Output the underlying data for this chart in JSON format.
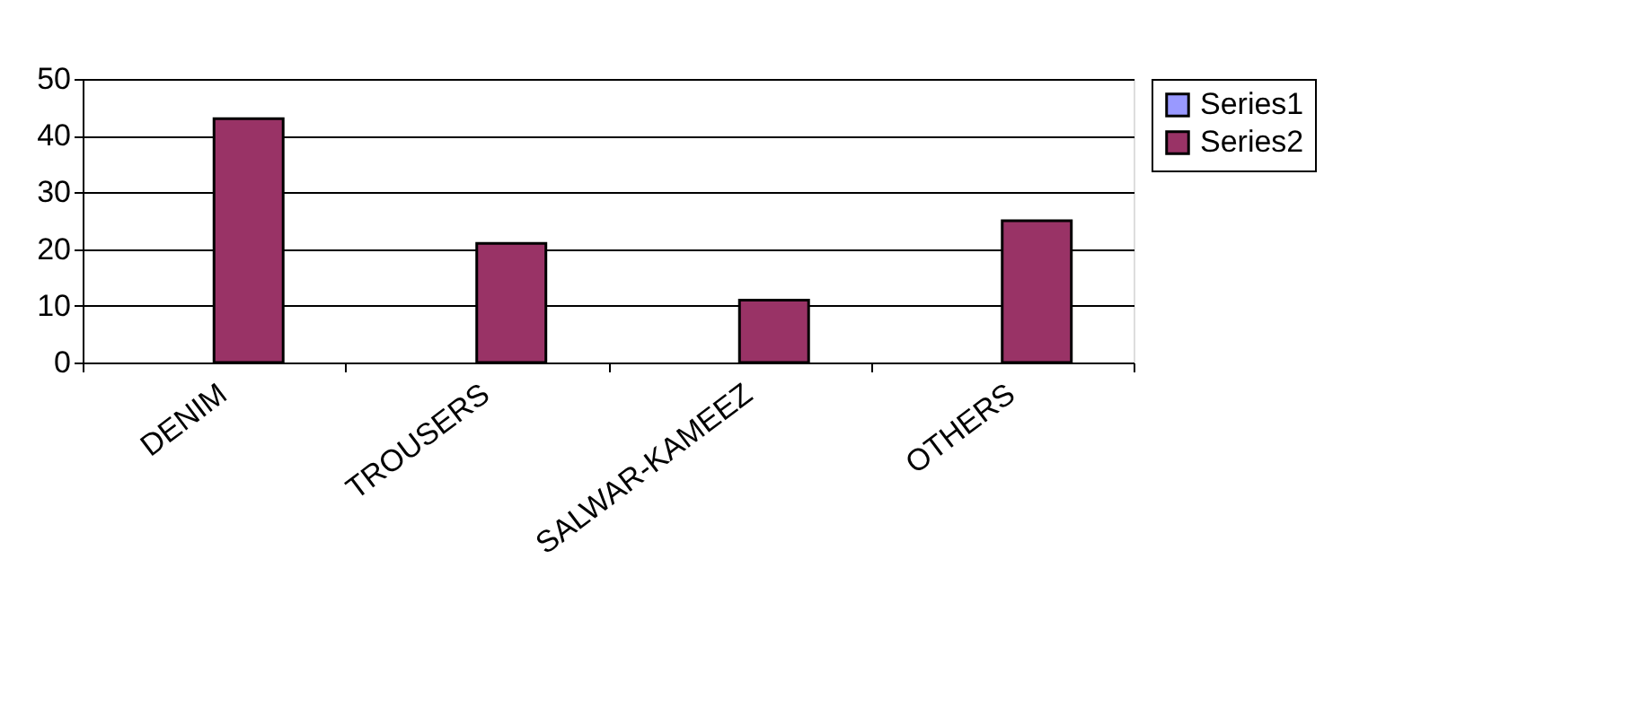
{
  "chart_data": {
    "type": "bar",
    "categories": [
      "DENIM",
      "TROUSERS",
      "SALWAR-KAMEEZ",
      "OTHERS"
    ],
    "series": [
      {
        "name": "Series1",
        "color": "#9999ff",
        "values": [
          null,
          null,
          null,
          null
        ]
      },
      {
        "name": "Series2",
        "color": "#993366",
        "values": [
          43,
          21,
          11,
          25
        ]
      }
    ],
    "ylim": [
      0,
      50
    ],
    "yticks": [
      0,
      10,
      20,
      30,
      40,
      50
    ],
    "grid": "y",
    "legend": "right"
  }
}
